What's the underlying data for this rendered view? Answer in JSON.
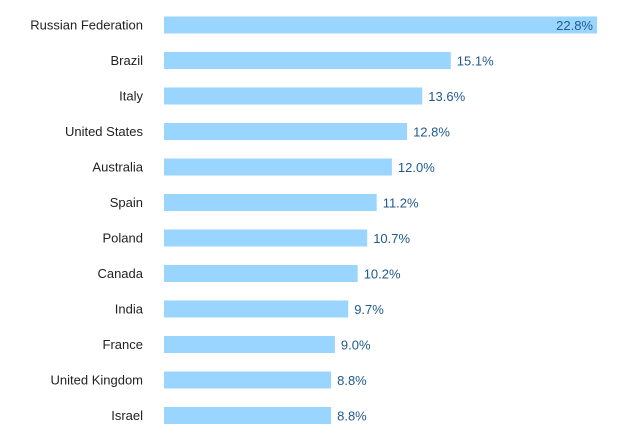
{
  "chart_data": {
    "type": "bar",
    "orientation": "horizontal",
    "title": "",
    "xlabel": "",
    "ylabel": "",
    "categories": [
      "Russian Federation",
      "Brazil",
      "Italy",
      "United States",
      "Australia",
      "Spain",
      "Poland",
      "Canada",
      "India",
      "France",
      "United Kingdom",
      "Israel"
    ],
    "values": [
      22.8,
      15.1,
      13.6,
      12.8,
      12.0,
      11.2,
      10.7,
      10.2,
      9.7,
      9.0,
      8.8,
      8.8
    ],
    "value_labels": [
      "22.8%",
      "15.1%",
      "13.6%",
      "12.8%",
      "12.0%",
      "11.2%",
      "10.7%",
      "10.2%",
      "9.7%",
      "9.0%",
      "8.8%",
      "8.8%"
    ],
    "xlim": [
      0,
      22.8
    ],
    "grid": false,
    "legend": "none",
    "colors": {
      "bar": "#99d5ff",
      "value_label": "#1f5a8c",
      "category_label": "#222222"
    }
  }
}
